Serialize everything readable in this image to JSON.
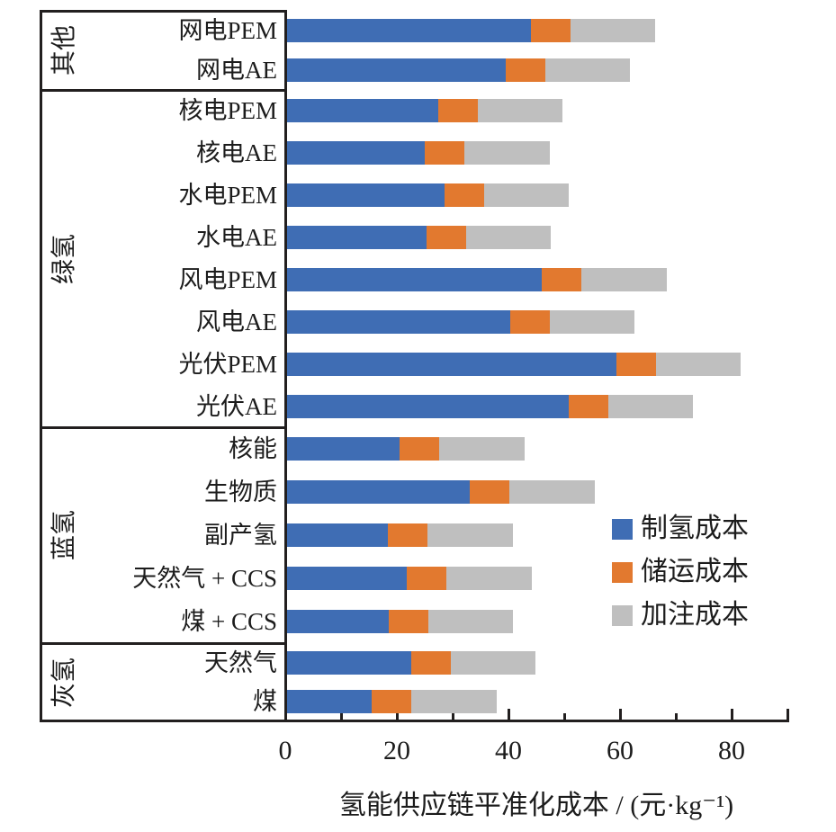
{
  "figure": {
    "xlabel": "氢能供应链平准化成本 / (元·kg⁻¹)"
  },
  "legend": [
    {
      "label": "制氢成本",
      "color": "#3F6DB4"
    },
    {
      "label": "储运成本",
      "color": "#E2792F"
    },
    {
      "label": "加注成本",
      "color": "#BFBFBF"
    }
  ],
  "chart_data": {
    "type": "bar",
    "orientation": "horizontal",
    "stacked": true,
    "title": "",
    "xlabel": "氢能供应链平准化成本 / (元·kg⁻¹)",
    "ylabel": "",
    "xlim": [
      0,
      90
    ],
    "x_labeled_ticks": [
      0,
      20,
      40,
      60,
      80
    ],
    "x_major_ticks": [
      0,
      20,
      40,
      60,
      80,
      90
    ],
    "x_minor_ticks": [
      10,
      30,
      50,
      70
    ],
    "grid": false,
    "legend_position": "center-right",
    "series_names": [
      "制氢成本",
      "储运成本",
      "加注成本"
    ],
    "series_colors": [
      "#3F6DB4",
      "#E2792F",
      "#BFBFBF"
    ],
    "groups": [
      {
        "name": "其他",
        "rows": [
          {
            "label": "网电PEM",
            "values": [
              43.8,
              7.1,
              15.2
            ]
          },
          {
            "label": "网电AE",
            "values": [
              39.2,
              7.1,
              15.2
            ]
          }
        ]
      },
      {
        "name": "绿氢",
        "rows": [
          {
            "label": "核电PEM",
            "values": [
              27.2,
              7.1,
              15.2
            ]
          },
          {
            "label": "核电AE",
            "values": [
              24.8,
              7.1,
              15.2
            ]
          },
          {
            "label": "水电PEM",
            "values": [
              28.3,
              7.1,
              15.2
            ]
          },
          {
            "label": "水电AE",
            "values": [
              25.0,
              7.1,
              15.2
            ]
          },
          {
            "label": "风电PEM",
            "values": [
              45.8,
              7.1,
              15.2
            ]
          },
          {
            "label": "风电AE",
            "values": [
              40.0,
              7.1,
              15.2
            ]
          },
          {
            "label": "光伏PEM",
            "values": [
              59.1,
              7.1,
              15.2
            ]
          },
          {
            "label": "光伏AE",
            "values": [
              50.6,
              7.1,
              15.2
            ]
          }
        ]
      },
      {
        "name": "蓝氢",
        "rows": [
          {
            "label": "核能",
            "values": [
              20.3,
              7.1,
              15.2
            ]
          },
          {
            "label": "生物质",
            "values": [
              32.9,
              7.1,
              15.2
            ]
          },
          {
            "label": "副产氢",
            "values": [
              18.2,
              7.1,
              15.2
            ]
          },
          {
            "label": "天然气 + CCS",
            "values": [
              21.6,
              7.1,
              15.2
            ]
          },
          {
            "label": "煤 + CCS",
            "values": [
              18.3,
              7.1,
              15.2
            ]
          }
        ]
      },
      {
        "name": "灰氢",
        "rows": [
          {
            "label": "天然气",
            "values": [
              22.3,
              7.1,
              15.2
            ]
          },
          {
            "label": "煤",
            "values": [
              15.3,
              7.1,
              15.2
            ]
          }
        ]
      }
    ]
  }
}
